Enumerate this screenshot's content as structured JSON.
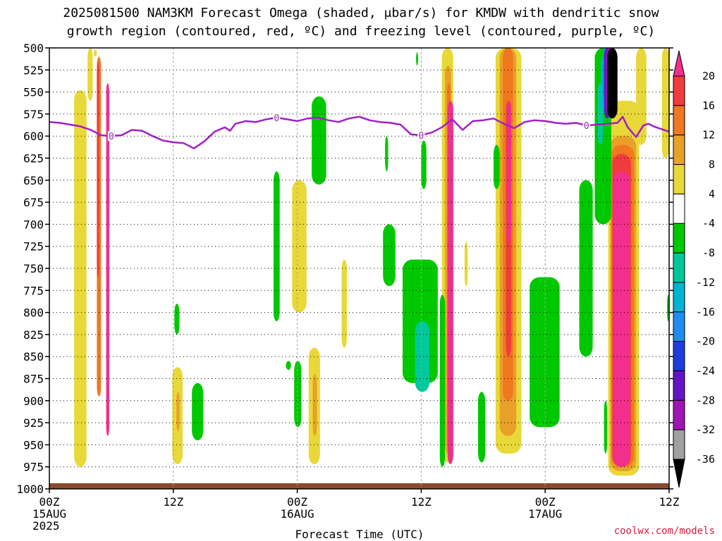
{
  "chart_data": {
    "type": "heatmap",
    "title_line1": "2025081500 NAM3KM Forecast Omega (shaded, μbar/s) for KMDW with dendritic snow",
    "title_line2": "growth region (contoured, red, ºC) and freezing level (contoured, purple, ºC)",
    "xlabel": "Forecast Time (UTC)",
    "credit": "coolwx.com/models",
    "y_axis": {
      "quantity": "pressure (mb)",
      "inverted": true,
      "range": [
        500,
        1000
      ],
      "ticks": [
        500,
        525,
        550,
        575,
        600,
        625,
        650,
        675,
        700,
        725,
        750,
        775,
        800,
        825,
        850,
        875,
        900,
        925,
        950,
        975,
        1000
      ]
    },
    "x_axis": {
      "range_hours": [
        0,
        60
      ],
      "ticks": [
        {
          "hour": 0,
          "lines": [
            "00Z",
            "15AUG",
            "2025"
          ]
        },
        {
          "hour": 12,
          "lines": [
            "12Z"
          ]
        },
        {
          "hour": 24,
          "lines": [
            "00Z",
            "16AUG"
          ]
        },
        {
          "hour": 36,
          "lines": [
            "12Z"
          ]
        },
        {
          "hour": 48,
          "lines": [
            "00Z",
            "17AUG"
          ]
        },
        {
          "hour": 60,
          "lines": [
            "12Z"
          ]
        }
      ]
    },
    "grid": true,
    "colorbar": {
      "position": "right",
      "labels": [
        20,
        16,
        12,
        8,
        4,
        -4,
        -8,
        -12,
        -16,
        -20,
        -24,
        -28,
        -32,
        -36
      ],
      "colors": [
        "#f0308c",
        "#f03c3c",
        "#f07820",
        "#e8a028",
        "#e8d838",
        "#ffffff",
        "#00c800",
        "#00c89a",
        "#00b4d2",
        "#1e8cf0",
        "#1e3cdc",
        "#6414c8",
        "#a014b4",
        "#a0a0a0",
        "#000000"
      ]
    },
    "freezing_level": {
      "contour_label": "0",
      "color": "#a020c8",
      "points": [
        [
          0,
          584
        ],
        [
          1,
          585
        ],
        [
          2,
          587
        ],
        [
          3,
          589
        ],
        [
          4,
          593
        ],
        [
          5,
          599
        ],
        [
          6,
          600
        ],
        [
          7,
          599
        ],
        [
          8,
          593
        ],
        [
          9,
          594
        ],
        [
          10,
          600
        ],
        [
          11,
          605
        ],
        [
          12,
          607
        ],
        [
          13,
          608
        ],
        [
          14,
          614
        ],
        [
          15,
          606
        ],
        [
          16,
          595
        ],
        [
          17,
          590
        ],
        [
          17.5,
          594
        ],
        [
          18,
          586
        ],
        [
          19,
          583
        ],
        [
          20,
          584
        ],
        [
          21,
          581
        ],
        [
          22,
          579
        ],
        [
          23,
          581
        ],
        [
          24,
          583
        ],
        [
          25,
          580
        ],
        [
          26,
          579
        ],
        [
          27,
          582
        ],
        [
          28,
          584
        ],
        [
          29,
          580
        ],
        [
          30,
          578
        ],
        [
          31,
          582
        ],
        [
          32,
          584
        ],
        [
          33,
          585
        ],
        [
          34,
          587
        ],
        [
          35,
          598
        ],
        [
          36,
          599
        ],
        [
          37,
          596
        ],
        [
          38,
          590
        ],
        [
          39,
          581
        ],
        [
          40,
          593
        ],
        [
          41,
          583
        ],
        [
          42,
          582
        ],
        [
          43,
          580
        ],
        [
          44,
          586
        ],
        [
          45,
          591
        ],
        [
          46,
          584
        ],
        [
          47,
          582
        ],
        [
          48,
          583
        ],
        [
          49,
          585
        ],
        [
          50,
          586
        ],
        [
          51,
          585
        ],
        [
          52,
          588
        ],
        [
          53,
          587
        ],
        [
          54,
          586
        ],
        [
          55,
          585
        ],
        [
          55.5,
          578
        ],
        [
          56,
          590
        ],
        [
          56.8,
          601
        ],
        [
          57.5,
          588
        ],
        [
          58,
          586
        ],
        [
          58.5,
          589
        ],
        [
          59,
          591
        ],
        [
          60,
          595
        ]
      ]
    },
    "omega_regions": [
      {
        "value": 4,
        "h": [
          2.4,
          3.6
        ],
        "p": [
          548,
          975
        ]
      },
      {
        "value": 12,
        "h": [
          4.6,
          5.0
        ],
        "p": [
          510,
          895
        ]
      },
      {
        "value": 16,
        "h": [
          4.6,
          4.8
        ],
        "p": [
          516,
          760
        ]
      },
      {
        "value": 20,
        "h": [
          5.5,
          5.8
        ],
        "p": [
          540,
          940
        ]
      },
      {
        "value": 4,
        "h": [
          3.7,
          4.2
        ],
        "p": [
          500,
          560
        ]
      },
      {
        "value": 4,
        "h": [
          4.3,
          4.6
        ],
        "p": [
          502,
          510
        ]
      },
      {
        "value": 4,
        "h": [
          11.9,
          12.9
        ],
        "p": [
          862,
          972
        ]
      },
      {
        "value": 8,
        "h": [
          12.3,
          12.6
        ],
        "p": [
          890,
          935
        ]
      },
      {
        "value": 4,
        "h": [
          23.5,
          24.9
        ],
        "p": [
          650,
          800
        ]
      },
      {
        "value": 4,
        "h": [
          25.1,
          26.2
        ],
        "p": [
          840,
          972
        ]
      },
      {
        "value": 8,
        "h": [
          25.5,
          25.9
        ],
        "p": [
          870,
          940
        ]
      },
      {
        "value": 4,
        "h": [
          38.0,
          39.1
        ],
        "p": [
          500,
          970
        ]
      },
      {
        "value": 8,
        "h": [
          38.3,
          38.9
        ],
        "p": [
          520,
          960
        ]
      },
      {
        "value": 12,
        "h": [
          38.5,
          38.85
        ],
        "p": [
          540,
          955
        ]
      },
      {
        "value": 20,
        "h": [
          38.55,
          39.1
        ],
        "p": [
          560,
          972
        ]
      },
      {
        "value": 4,
        "h": [
          43.2,
          45.7
        ],
        "p": [
          500,
          960
        ]
      },
      {
        "value": 8,
        "h": [
          43.6,
          45.2
        ],
        "p": [
          500,
          940
        ]
      },
      {
        "value": 12,
        "h": [
          43.9,
          44.9
        ],
        "p": [
          500,
          900
        ]
      },
      {
        "value": 16,
        "h": [
          44.2,
          44.7
        ],
        "p": [
          560,
          850
        ]
      },
      {
        "value": 20,
        "h": [
          44.3,
          44.7
        ],
        "p": [
          560,
          720
        ]
      },
      {
        "value": 4,
        "h": [
          54.1,
          57.1
        ],
        "p": [
          560,
          985
        ]
      },
      {
        "value": 8,
        "h": [
          54.3,
          56.8
        ],
        "p": [
          600,
          980
        ]
      },
      {
        "value": 12,
        "h": [
          54.4,
          56.6
        ],
        "p": [
          610,
          975
        ]
      },
      {
        "value": 16,
        "h": [
          54.5,
          56.3
        ],
        "p": [
          620,
          975
        ]
      },
      {
        "value": 20,
        "h": [
          54.6,
          56.2
        ],
        "p": [
          640,
          975
        ]
      },
      {
        "value": 4,
        "h": [
          56.8,
          57.8
        ],
        "p": [
          500,
          610
        ]
      },
      {
        "value": 4,
        "h": [
          59.3,
          60
        ],
        "p": [
          500,
          625
        ]
      },
      {
        "value": 4,
        "h": [
          28.3,
          28.8
        ],
        "p": [
          740,
          840
        ]
      },
      {
        "value": 4,
        "h": [
          40.2,
          40.5
        ],
        "p": [
          720,
          770
        ]
      },
      {
        "value": -8,
        "h": [
          12.1,
          12.6
        ],
        "p": [
          790,
          825
        ]
      },
      {
        "value": -8,
        "h": [
          13.8,
          14.9
        ],
        "p": [
          880,
          945
        ]
      },
      {
        "value": -8,
        "h": [
          21.7,
          22.3
        ],
        "p": [
          640,
          810
        ]
      },
      {
        "value": -8,
        "h": [
          22.9,
          23.4
        ],
        "p": [
          855,
          865
        ]
      },
      {
        "value": -8,
        "h": [
          23.7,
          24.4
        ],
        "p": [
          855,
          930
        ]
      },
      {
        "value": -8,
        "h": [
          25.4,
          26.8
        ],
        "p": [
          555,
          655
        ]
      },
      {
        "value": -8,
        "h": [
          32.3,
          33.5
        ],
        "p": [
          700,
          770
        ]
      },
      {
        "value": -8,
        "h": [
          34.2,
          37.6
        ],
        "p": [
          740,
          880
        ]
      },
      {
        "value": -12,
        "h": [
          35.4,
          36.8
        ],
        "p": [
          810,
          890
        ]
      },
      {
        "value": -8,
        "h": [
          37.8,
          38.3
        ],
        "p": [
          780,
          975
        ]
      },
      {
        "value": -8,
        "h": [
          41.5,
          42.2
        ],
        "p": [
          890,
          970
        ]
      },
      {
        "value": -8,
        "h": [
          46.5,
          49.4
        ],
        "p": [
          760,
          930
        ]
      },
      {
        "value": -8,
        "h": [
          43.0,
          43.6
        ],
        "p": [
          610,
          660
        ]
      },
      {
        "value": -8,
        "h": [
          51.3,
          52.6
        ],
        "p": [
          650,
          850
        ]
      },
      {
        "value": -8,
        "h": [
          52.8,
          54.4
        ],
        "p": [
          500,
          700
        ]
      },
      {
        "value": -12,
        "h": [
          53.1,
          53.6
        ],
        "p": [
          540,
          610
        ]
      },
      {
        "value": -16,
        "h": [
          53.4,
          53.9
        ],
        "p": [
          510,
          570
        ]
      },
      {
        "value": -20,
        "h": [
          53.6,
          54.0
        ],
        "p": [
          500,
          560
        ]
      },
      {
        "value": -28,
        "h": [
          53.7,
          54.3
        ],
        "p": [
          500,
          580
        ]
      },
      {
        "value": -32,
        "h": [
          53.9,
          54.5
        ],
        "p": [
          500,
          575
        ]
      },
      {
        "value": -36,
        "h": [
          54.0,
          55.0
        ],
        "p": [
          500,
          580
        ]
      },
      {
        "value": -8,
        "h": [
          36.0,
          36.5
        ],
        "p": [
          605,
          660
        ]
      },
      {
        "value": -8,
        "h": [
          32.5,
          32.8
        ],
        "p": [
          600,
          640
        ]
      },
      {
        "value": -8,
        "h": [
          53.7,
          54.0
        ],
        "p": [
          900,
          960
        ]
      },
      {
        "value": -8,
        "h": [
          59.8,
          60
        ],
        "p": [
          780,
          810
        ]
      },
      {
        "value": -8,
        "h": [
          35.5,
          35.7
        ],
        "p": [
          505,
          520
        ]
      }
    ]
  }
}
